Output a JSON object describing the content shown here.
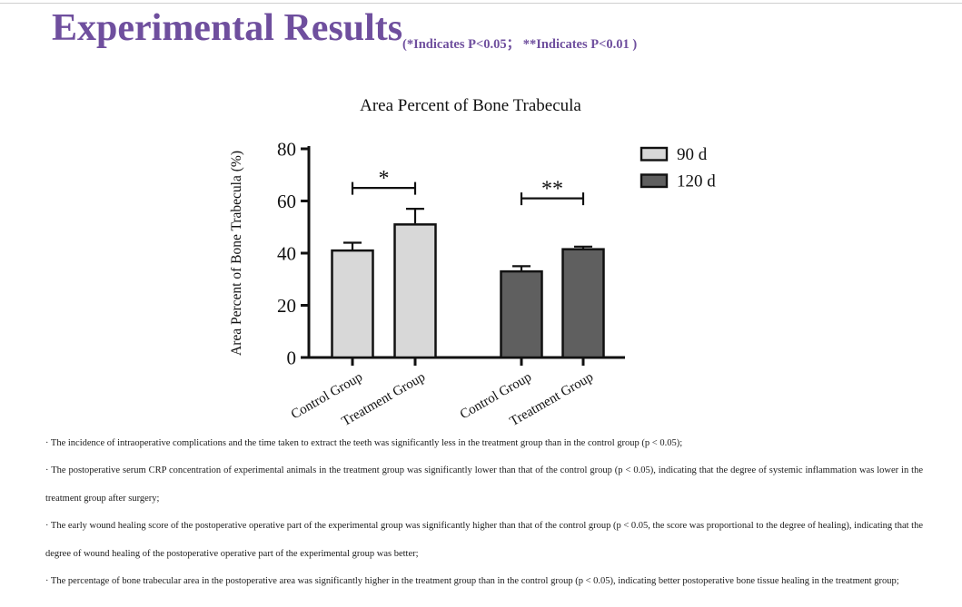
{
  "slide": {
    "title": "Experimental Results",
    "subtitle": "(*Indicates P<0.05；  **Indicates P<0.01 )",
    "title_color": "#6f4f9e"
  },
  "chart_data": {
    "type": "bar",
    "title": "Area Percent of Bone Trabecula",
    "xlabel": "",
    "ylabel": "Area Percent of Bone  Trabecula (%)",
    "ylim": [
      0,
      80
    ],
    "yticks": [
      0,
      20,
      40,
      60,
      80
    ],
    "grid": false,
    "legend_position": "top-right",
    "axis_color": "#111111",
    "categories": [
      "Control Group",
      "Treatment Group",
      "Control Group",
      "Treatment Group"
    ],
    "series": [
      {
        "name": "90 d",
        "color": "#d8d8d8"
      },
      {
        "name": "120 d",
        "color": "#5f5f5f"
      }
    ],
    "bars": [
      {
        "category": "Control Group",
        "series": "90 d",
        "value": 41,
        "error": 3
      },
      {
        "category": "Treatment Group",
        "series": "90 d",
        "value": 51,
        "error": 6
      },
      {
        "category": "Control Group",
        "series": "120 d",
        "value": 33,
        "error": 2
      },
      {
        "category": "Treatment Group",
        "series": "120 d",
        "value": 41.5,
        "error": 1
      }
    ],
    "significance": [
      {
        "label": "*",
        "between": [
          0,
          1
        ],
        "y": 65
      },
      {
        "label": "**",
        "between": [
          2,
          3
        ],
        "y": 61
      }
    ]
  },
  "notes": [
    "· The incidence of intraoperative complications and the time taken to extract the teeth was significantly less in the treatment group than in the control group (p < 0.05);",
    "· The postoperative serum CRP concentration of experimental animals in the treatment group was significantly lower than that of the control group (p < 0.05), indicating that the degree of systemic inflammation was lower in the treatment group after surgery;",
    "· The early wound healing score of the postoperative operative part of the experimental group was significantly higher than that of the control group (p < 0.05, the score was proportional to the degree of healing), indicating that the degree of wound healing of the postoperative operative part of the experimental group was better;",
    "· The percentage of bone trabecular area in the postoperative area was significantly higher in the treatment group than in the control group (p < 0.05), indicating better postoperative bone tissue healing in the treatment group;"
  ]
}
